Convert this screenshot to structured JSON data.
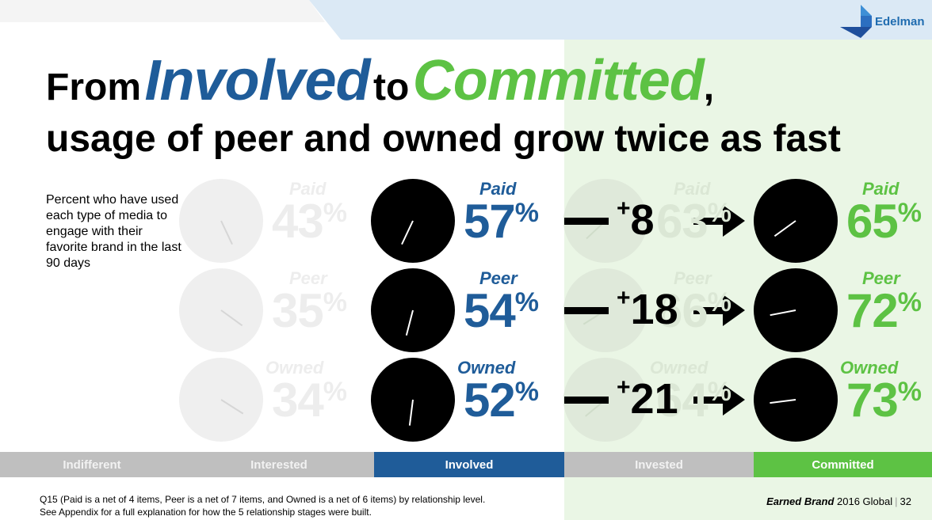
{
  "brand": {
    "name": "Edelman"
  },
  "title": {
    "from": "From",
    "involved": "Involved",
    "to": "to",
    "committed": "Committed",
    "comma": ",",
    "line2": "usage of peer and owned grow twice as fast"
  },
  "description": "Percent who have used each type of media to engage with their favorite brand in the last 90 days",
  "stages": [
    "Indifferent",
    "Interested",
    "Involved",
    "Invested",
    "Committed"
  ],
  "colors": {
    "involved": "#1f5c99",
    "committed": "#5dc244",
    "stage_gray": "#bfbfbf"
  },
  "chart_data": {
    "type": "pie",
    "unit": "%",
    "categories": [
      "Paid",
      "Peer",
      "Owned"
    ],
    "series": [
      {
        "name": "Interested",
        "values": [
          43,
          35,
          34
        ]
      },
      {
        "name": "Involved",
        "values": [
          57,
          54,
          52
        ]
      },
      {
        "name": "Invested",
        "values": [
          63,
          66,
          64
        ]
      },
      {
        "name": "Committed",
        "values": [
          65,
          72,
          73
        ]
      }
    ],
    "change_involved_to_committed": [
      "+8",
      "+18",
      "+21"
    ]
  },
  "footnote": {
    "line1": "Q15 (Paid is a net of 4 items, Peer is a net of 7 items, and Owned is a net of 6 items) by relationship level.",
    "line2": "See Appendix for a full explanation for how the 5 relationship stages were built."
  },
  "page": {
    "brand": "Earned Brand",
    "label": "2016 Global",
    "number": "32"
  }
}
